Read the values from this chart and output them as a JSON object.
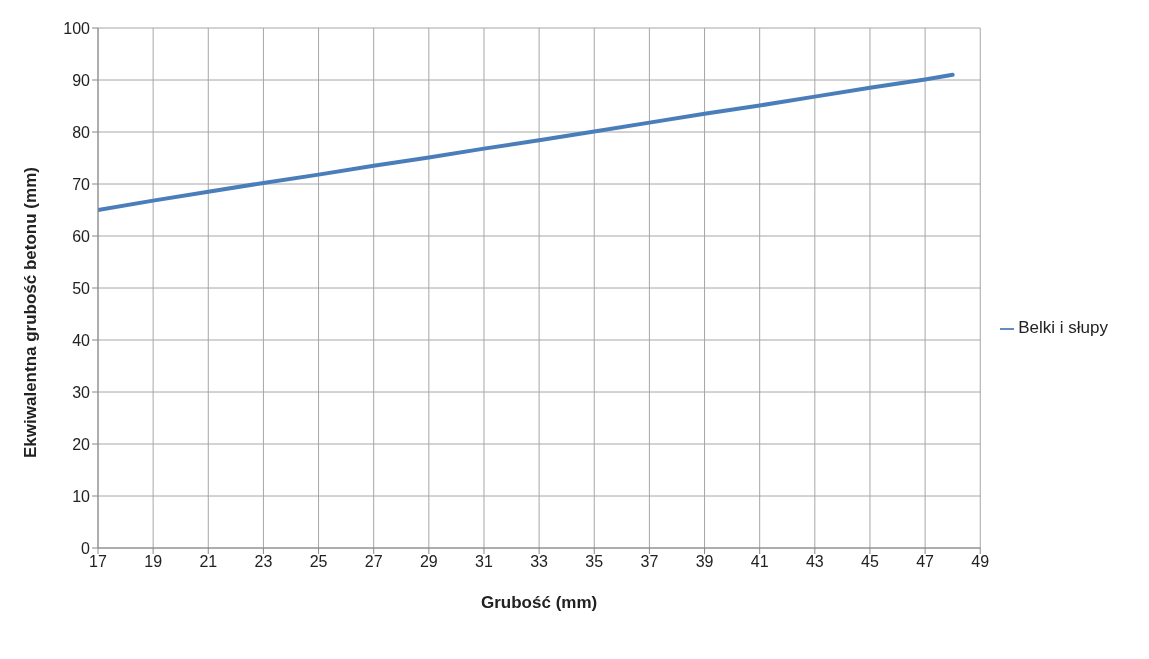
{
  "chart_data": {
    "type": "line",
    "xlabel": "Grubość (mm)",
    "ylabel": "Ekwiwalentna grubość betonu (mm)",
    "x": [
      17,
      19,
      21,
      23,
      25,
      27,
      29,
      31,
      33,
      35,
      37,
      39,
      41,
      43,
      45,
      47,
      48
    ],
    "series": [
      {
        "name": "Belki i słupy",
        "color": "#4a7ebb",
        "values": [
          65,
          66.8,
          68.5,
          70.2,
          71.8,
          73.5,
          75.1,
          76.8,
          78.4,
          80.1,
          81.8,
          83.5,
          85.1,
          86.8,
          88.5,
          90.1,
          91
        ]
      }
    ],
    "xlim": [
      17,
      49
    ],
    "xticks": [
      17,
      19,
      21,
      23,
      25,
      27,
      29,
      31,
      33,
      35,
      37,
      39,
      41,
      43,
      45,
      47,
      49
    ],
    "ylim": [
      0,
      100
    ],
    "yticks": [
      0,
      10,
      20,
      30,
      40,
      50,
      60,
      70,
      80,
      90,
      100
    ],
    "grid": true,
    "legend": "right",
    "marker": "none",
    "line_style": "solid"
  }
}
